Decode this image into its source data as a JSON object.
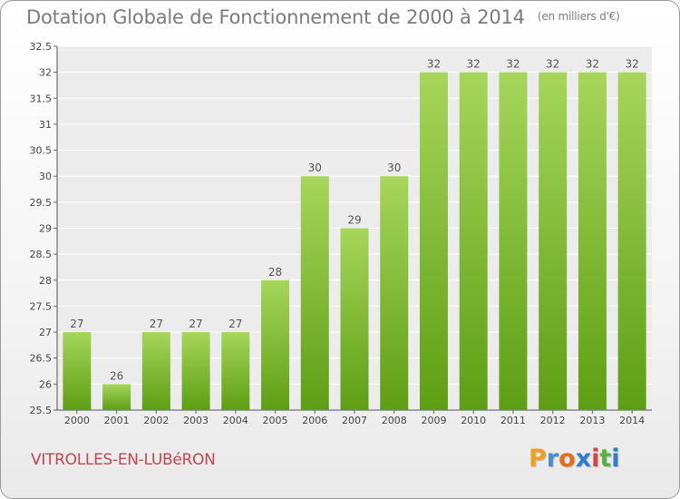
{
  "title": "Dotation Globale de Fonctionnement de 2000 à 2014",
  "unit": "(en milliers d'€)",
  "commune": "VITROLLES-EN-LUBéRON",
  "logo": {
    "letters": [
      "P",
      "r",
      "o",
      "x",
      "i",
      "t",
      "i"
    ],
    "colors": [
      "#f0a020",
      "#4a90d0",
      "#e07020",
      "#2a7fd0",
      "#e04040",
      "#5ab040",
      "#2a7fd0"
    ]
  },
  "colors": {
    "bar_light": "#a6d65a",
    "bar_dark": "#5e9e14",
    "commune": "#c0474f"
  },
  "chart_data": {
    "type": "bar",
    "title": "Dotation Globale de Fonctionnement de 2000 à 2014",
    "xlabel": "",
    "ylabel": "",
    "ylim": [
      25.5,
      32.5
    ],
    "yticks": [
      25.5,
      26,
      26.5,
      27,
      27.5,
      28,
      28.5,
      29,
      29.5,
      30,
      30.5,
      31,
      31.5,
      32,
      32.5
    ],
    "grid": true,
    "categories": [
      "2000",
      "2001",
      "2002",
      "2003",
      "2004",
      "2005",
      "2006",
      "2007",
      "2008",
      "2009",
      "2010",
      "2011",
      "2012",
      "2013",
      "2014"
    ],
    "values": [
      27,
      26,
      27,
      27,
      27,
      28,
      30,
      29,
      30,
      32,
      32,
      32,
      32,
      32,
      32
    ]
  }
}
